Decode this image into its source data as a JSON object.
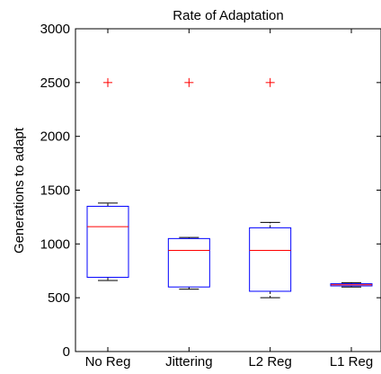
{
  "chart_data": {
    "type": "box",
    "title": "Rate of Adaptation",
    "xlabel": "",
    "ylabel": "Generations to adapt",
    "ylim": [
      0,
      3000
    ],
    "yticks": [
      0,
      500,
      1000,
      1500,
      2000,
      2500,
      3000
    ],
    "categories": [
      "No Reg",
      "Jittering",
      "L2 Reg",
      "L1 Reg"
    ],
    "boxes": [
      {
        "category": "No Reg",
        "whisker_low": 660,
        "q1": 690,
        "median": 1160,
        "q3": 1350,
        "whisker_high": 1380,
        "outliers": [
          2500
        ]
      },
      {
        "category": "Jittering",
        "whisker_low": 580,
        "q1": 600,
        "median": 940,
        "q3": 1050,
        "whisker_high": 1060,
        "outliers": [
          2500
        ]
      },
      {
        "category": "L2 Reg",
        "whisker_low": 500,
        "q1": 560,
        "median": 940,
        "q3": 1150,
        "whisker_high": 1200,
        "outliers": [
          2500
        ]
      },
      {
        "category": "L1 Reg",
        "whisker_low": 600,
        "q1": 610,
        "median": 620,
        "q3": 630,
        "whisker_high": 640,
        "outliers": []
      }
    ],
    "colors": {
      "box": "#0000ff",
      "median": "#ff0000",
      "whisker": "#000000",
      "outlier": "#ff0000"
    },
    "grid": false
  }
}
